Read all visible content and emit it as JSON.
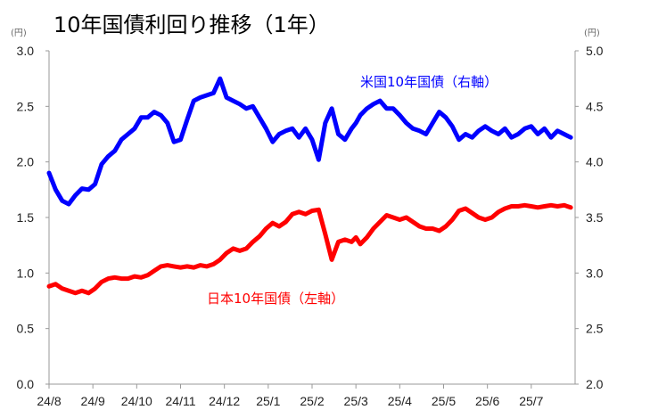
{
  "chart_data": {
    "type": "line",
    "title": "10年国債利回り推移（1年）",
    "left_unit": "(円)",
    "right_unit": "(円)",
    "x_tick_labels": [
      "24/8",
      "24/9",
      "24/10",
      "24/11",
      "24/12",
      "25/1",
      "25/2",
      "25/3",
      "25/4",
      "25/5",
      "25/6",
      "25/7"
    ],
    "left_axis": {
      "ylim": [
        0.0,
        3.0
      ],
      "ticks": [
        "0.0",
        "0.5",
        "1.0",
        "1.5",
        "2.0",
        "2.5",
        "3.0"
      ]
    },
    "right_axis": {
      "ylim": [
        2.0,
        5.0
      ],
      "ticks": [
        "2.0",
        "2.5",
        "3.0",
        "3.5",
        "4.0",
        "4.5",
        "5.0"
      ]
    },
    "grid": false,
    "series": [
      {
        "name": "日本10年国債（左軸）",
        "axis": "left",
        "color": "#ff0000",
        "x": [
          0,
          0.15,
          0.3,
          0.45,
          0.6,
          0.75,
          0.9,
          1.05,
          1.2,
          1.35,
          1.5,
          1.65,
          1.8,
          1.95,
          2.1,
          2.25,
          2.4,
          2.55,
          2.7,
          2.85,
          3.0,
          3.15,
          3.3,
          3.45,
          3.6,
          3.75,
          3.9,
          4.05,
          4.2,
          4.35,
          4.5,
          4.65,
          4.8,
          4.95,
          5.1,
          5.25,
          5.4,
          5.55,
          5.7,
          5.85,
          6.0,
          6.15,
          6.3,
          6.45,
          6.6,
          6.75,
          6.9,
          7.0,
          7.1,
          7.25,
          7.4,
          7.55,
          7.7,
          7.85,
          8.0,
          8.15,
          8.3,
          8.45,
          8.6,
          8.75,
          8.9,
          9.05,
          9.2,
          9.35,
          9.5,
          9.65,
          9.8,
          9.95,
          10.1,
          10.25,
          10.4,
          10.55,
          10.7,
          10.85,
          11.0,
          11.15,
          11.3,
          11.45,
          11.6,
          11.75,
          11.9
        ],
        "values": [
          0.88,
          0.9,
          0.86,
          0.84,
          0.82,
          0.84,
          0.82,
          0.86,
          0.92,
          0.95,
          0.96,
          0.95,
          0.95,
          0.97,
          0.96,
          0.98,
          1.02,
          1.06,
          1.07,
          1.06,
          1.05,
          1.06,
          1.05,
          1.07,
          1.06,
          1.08,
          1.12,
          1.18,
          1.22,
          1.2,
          1.22,
          1.28,
          1.33,
          1.4,
          1.45,
          1.42,
          1.46,
          1.53,
          1.55,
          1.53,
          1.56,
          1.57,
          1.35,
          1.12,
          1.28,
          1.3,
          1.28,
          1.32,
          1.26,
          1.32,
          1.4,
          1.46,
          1.52,
          1.5,
          1.48,
          1.5,
          1.46,
          1.42,
          1.4,
          1.4,
          1.38,
          1.42,
          1.48,
          1.56,
          1.58,
          1.54,
          1.5,
          1.48,
          1.5,
          1.55,
          1.58,
          1.6,
          1.6,
          1.61,
          1.6,
          1.59,
          1.6,
          1.61,
          1.6,
          1.61,
          1.59
        ]
      },
      {
        "name": "米国10年国債（右軸）",
        "axis": "right",
        "color": "#0000ff",
        "x": [
          0,
          0.15,
          0.3,
          0.45,
          0.6,
          0.75,
          0.9,
          1.05,
          1.2,
          1.35,
          1.5,
          1.65,
          1.8,
          1.95,
          2.1,
          2.25,
          2.4,
          2.55,
          2.7,
          2.85,
          3.0,
          3.15,
          3.3,
          3.45,
          3.6,
          3.75,
          3.9,
          4.05,
          4.2,
          4.35,
          4.5,
          4.65,
          4.8,
          4.95,
          5.1,
          5.25,
          5.4,
          5.55,
          5.7,
          5.85,
          6.0,
          6.15,
          6.3,
          6.45,
          6.6,
          6.75,
          6.9,
          7.0,
          7.1,
          7.25,
          7.4,
          7.55,
          7.7,
          7.85,
          8.0,
          8.15,
          8.3,
          8.45,
          8.6,
          8.75,
          8.9,
          9.05,
          9.2,
          9.35,
          9.5,
          9.65,
          9.8,
          9.95,
          10.1,
          10.25,
          10.4,
          10.55,
          10.7,
          10.85,
          11.0,
          11.15,
          11.3,
          11.45,
          11.6,
          11.75,
          11.9
        ],
        "values": [
          3.9,
          3.75,
          3.65,
          3.62,
          3.7,
          3.76,
          3.75,
          3.8,
          3.98,
          4.05,
          4.1,
          4.2,
          4.25,
          4.3,
          4.4,
          4.4,
          4.45,
          4.42,
          4.35,
          4.18,
          4.2,
          4.38,
          4.55,
          4.58,
          4.6,
          4.62,
          4.75,
          4.58,
          4.55,
          4.52,
          4.48,
          4.5,
          4.4,
          4.3,
          4.18,
          4.25,
          4.28,
          4.3,
          4.22,
          4.3,
          4.2,
          4.02,
          4.35,
          4.48,
          4.25,
          4.2,
          4.3,
          4.35,
          4.42,
          4.48,
          4.52,
          4.55,
          4.48,
          4.48,
          4.42,
          4.35,
          4.3,
          4.28,
          4.25,
          4.35,
          4.45,
          4.4,
          4.32,
          4.2,
          4.25,
          4.22,
          4.28,
          4.32,
          4.28,
          4.25,
          4.3,
          4.22,
          4.25,
          4.3,
          4.32,
          4.25,
          4.3,
          4.22,
          4.28,
          4.25,
          4.22
        ]
      }
    ]
  }
}
